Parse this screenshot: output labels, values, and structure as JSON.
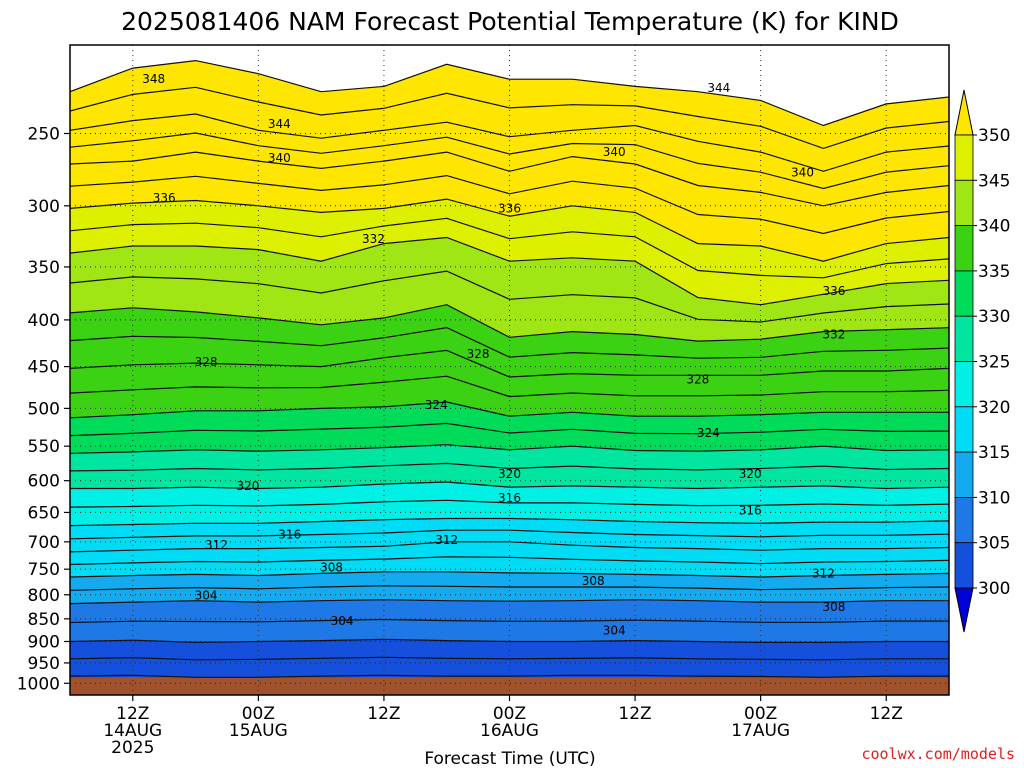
{
  "chart_data": {
    "type": "heatmap",
    "title": "2025081406 NAM Forecast Potential Temperature (K) for KIND",
    "xlabel": "Forecast Time (UTC)",
    "ylabel": "",
    "credit": "coolwx.com/models",
    "x_range_hours": [
      6,
      90
    ],
    "y_range_hpa": [
      1030,
      200
    ],
    "y_ticks": [
      250,
      300,
      350,
      400,
      450,
      500,
      550,
      600,
      650,
      700,
      750,
      800,
      850,
      900,
      950,
      1000
    ],
    "x_ticks": [
      {
        "hour": 12,
        "label": "12Z",
        "label2": "14AUG",
        "label3": "2025"
      },
      {
        "hour": 24,
        "label": "00Z",
        "label2": "15AUG",
        "label3": ""
      },
      {
        "hour": 36,
        "label": "12Z",
        "label2": "",
        "label3": ""
      },
      {
        "hour": 48,
        "label": "00Z",
        "label2": "16AUG",
        "label3": ""
      },
      {
        "hour": 60,
        "label": "12Z",
        "label2": "",
        "label3": ""
      },
      {
        "hour": 72,
        "label": "00Z",
        "label2": "17AUG",
        "label3": ""
      },
      {
        "hour": 84,
        "label": "12Z",
        "label2": "",
        "label3": ""
      }
    ],
    "colorbar": {
      "levels": [
        300,
        305,
        310,
        315,
        320,
        325,
        330,
        335,
        340,
        345,
        350
      ],
      "labels": [
        "300",
        "305",
        "310",
        "315",
        "320",
        "325",
        "330",
        "335",
        "340",
        "345",
        "350"
      ],
      "colors": [
        "#0000d8",
        "#1450dc",
        "#1e78e6",
        "#14aaf0",
        "#00dcf5",
        "#00f0e6",
        "#00e6a0",
        "#00dc5a",
        "#3cd214",
        "#a0e614",
        "#dcf000",
        "#ffe600"
      ]
    },
    "ground_color": "#a0522d",
    "ground_pressure_hpa": 985,
    "contour_interval_k": 2,
    "contour_labels": [
      {
        "value": "348",
        "hour": 14,
        "p": 218
      },
      {
        "value": "344",
        "hour": 26,
        "p": 244
      },
      {
        "value": "340",
        "hour": 26,
        "p": 266
      },
      {
        "value": "336",
        "hour": 15,
        "p": 294
      },
      {
        "value": "332",
        "hour": 35,
        "p": 326
      },
      {
        "value": "328",
        "hour": 19,
        "p": 445
      },
      {
        "value": "328",
        "hour": 45,
        "p": 436
      },
      {
        "value": "324",
        "hour": 41,
        "p": 496
      },
      {
        "value": "320",
        "hour": 23,
        "p": 608
      },
      {
        "value": "320",
        "hour": 48,
        "p": 590
      },
      {
        "value": "316",
        "hour": 48,
        "p": 627
      },
      {
        "value": "316",
        "hour": 27,
        "p": 687
      },
      {
        "value": "312",
        "hour": 20,
        "p": 706
      },
      {
        "value": "312",
        "hour": 42,
        "p": 697
      },
      {
        "value": "308",
        "hour": 31,
        "p": 747
      },
      {
        "value": "304",
        "hour": 19,
        "p": 801
      },
      {
        "value": "304",
        "hour": 32,
        "p": 855
      },
      {
        "value": "336",
        "hour": 48,
        "p": 302
      },
      {
        "value": "340",
        "hour": 58,
        "p": 262
      },
      {
        "value": "344",
        "hour": 68,
        "p": 223
      },
      {
        "value": "340",
        "hour": 76,
        "p": 276
      },
      {
        "value": "336",
        "hour": 79,
        "p": 372
      },
      {
        "value": "332",
        "hour": 79,
        "p": 415
      },
      {
        "value": "328",
        "hour": 66,
        "p": 465
      },
      {
        "value": "324",
        "hour": 67,
        "p": 532
      },
      {
        "value": "320",
        "hour": 71,
        "p": 590
      },
      {
        "value": "316",
        "hour": 71,
        "p": 647
      },
      {
        "value": "312",
        "hour": 78,
        "p": 758
      },
      {
        "value": "308",
        "hour": 56,
        "p": 773
      },
      {
        "value": "308",
        "hour": 79,
        "p": 825
      },
      {
        "value": "304",
        "hour": 58,
        "p": 875
      }
    ],
    "profiles": [
      {
        "hour": 6,
        "iso": [
          982,
          900,
          818,
          765,
          718,
          672,
          612,
          560,
          512,
          452,
          393,
          338,
          302,
          270,
          248,
          225
        ]
      },
      {
        "hour": 12,
        "iso": [
          980,
          897,
          815,
          762,
          715,
          670,
          612,
          558,
          508,
          448,
          388,
          332,
          298,
          268,
          242,
          212
        ]
      },
      {
        "hour": 18,
        "iso": [
          985,
          902,
          812,
          760,
          712,
          668,
          610,
          555,
          503,
          446,
          392,
          332,
          296,
          262,
          238,
          208
        ]
      },
      {
        "hour": 24,
        "iso": [
          985,
          900,
          815,
          762,
          712,
          668,
          612,
          557,
          503,
          448,
          398,
          335,
          300,
          268,
          248,
          215
        ]
      },
      {
        "hour": 30,
        "iso": [
          982,
          898,
          812,
          758,
          710,
          665,
          610,
          555,
          500,
          450,
          405,
          345,
          305,
          273,
          253,
          225
        ]
      },
      {
        "hour": 36,
        "iso": [
          980,
          895,
          810,
          755,
          708,
          662,
          605,
          552,
          498,
          440,
          398,
          330,
          302,
          268,
          248,
          222
        ]
      },
      {
        "hour": 42,
        "iso": [
          982,
          898,
          812,
          755,
          700,
          660,
          602,
          548,
          492,
          432,
          385,
          325,
          295,
          262,
          243,
          210
        ]
      },
      {
        "hour": 48,
        "iso": [
          982,
          900,
          813,
          757,
          700,
          660,
          610,
          555,
          510,
          462,
          418,
          345,
          308,
          275,
          252,
          218
        ]
      },
      {
        "hour": 54,
        "iso": [
          980,
          900,
          812,
          758,
          706,
          662,
          608,
          550,
          505,
          458,
          412,
          342,
          300,
          265,
          248,
          218
        ]
      },
      {
        "hour": 60,
        "iso": [
          980,
          898,
          810,
          760,
          710,
          665,
          610,
          556,
          510,
          460,
          415,
          345,
          305,
          270,
          245,
          222
        ]
      },
      {
        "hour": 66,
        "iso": [
          982,
          900,
          812,
          762,
          712,
          667,
          612,
          557,
          510,
          460,
          422,
          378,
          330,
          285,
          255,
          225
        ]
      },
      {
        "hour": 72,
        "iso": [
          983,
          902,
          815,
          765,
          715,
          668,
          610,
          555,
          508,
          460,
          420,
          385,
          332,
          290,
          262,
          230
        ]
      },
      {
        "hour": 78,
        "iso": [
          985,
          902,
          815,
          762,
          712,
          666,
          608,
          550,
          505,
          455,
          412,
          375,
          345,
          300,
          275,
          245
        ]
      },
      {
        "hour": 84,
        "iso": [
          982,
          900,
          812,
          760,
          712,
          666,
          612,
          556,
          505,
          455,
          410,
          365,
          330,
          290,
          262,
          232
        ]
      },
      {
        "hour": 90,
        "iso": [
          982,
          900,
          812,
          758,
          710,
          664,
          610,
          555,
          505,
          452,
          408,
          362,
          325,
          285,
          258,
          228
        ]
      }
    ]
  }
}
